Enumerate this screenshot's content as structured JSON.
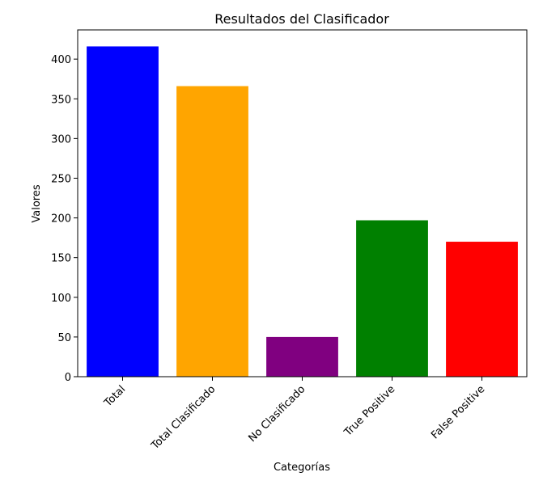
{
  "chart_data": {
    "type": "bar",
    "title": "Resultados del Clasificador",
    "xlabel": "Categorías",
    "ylabel": "Valores",
    "categories": [
      "Total",
      "Total Clasificado",
      "No Clasificado",
      "True Positive",
      "False Positive"
    ],
    "values": [
      416,
      366,
      50,
      197,
      170
    ],
    "colors": [
      "#0000ff",
      "#ffa500",
      "#800080",
      "#008000",
      "#ff0000"
    ],
    "ylim": [
      0,
      436.8
    ],
    "yticks": [
      0,
      50,
      100,
      150,
      200,
      250,
      300,
      350,
      400
    ],
    "ytick_labels": [
      "0",
      "50",
      "100",
      "150",
      "200",
      "250",
      "300",
      "350",
      "400"
    ],
    "grid": false,
    "legend": "none"
  }
}
